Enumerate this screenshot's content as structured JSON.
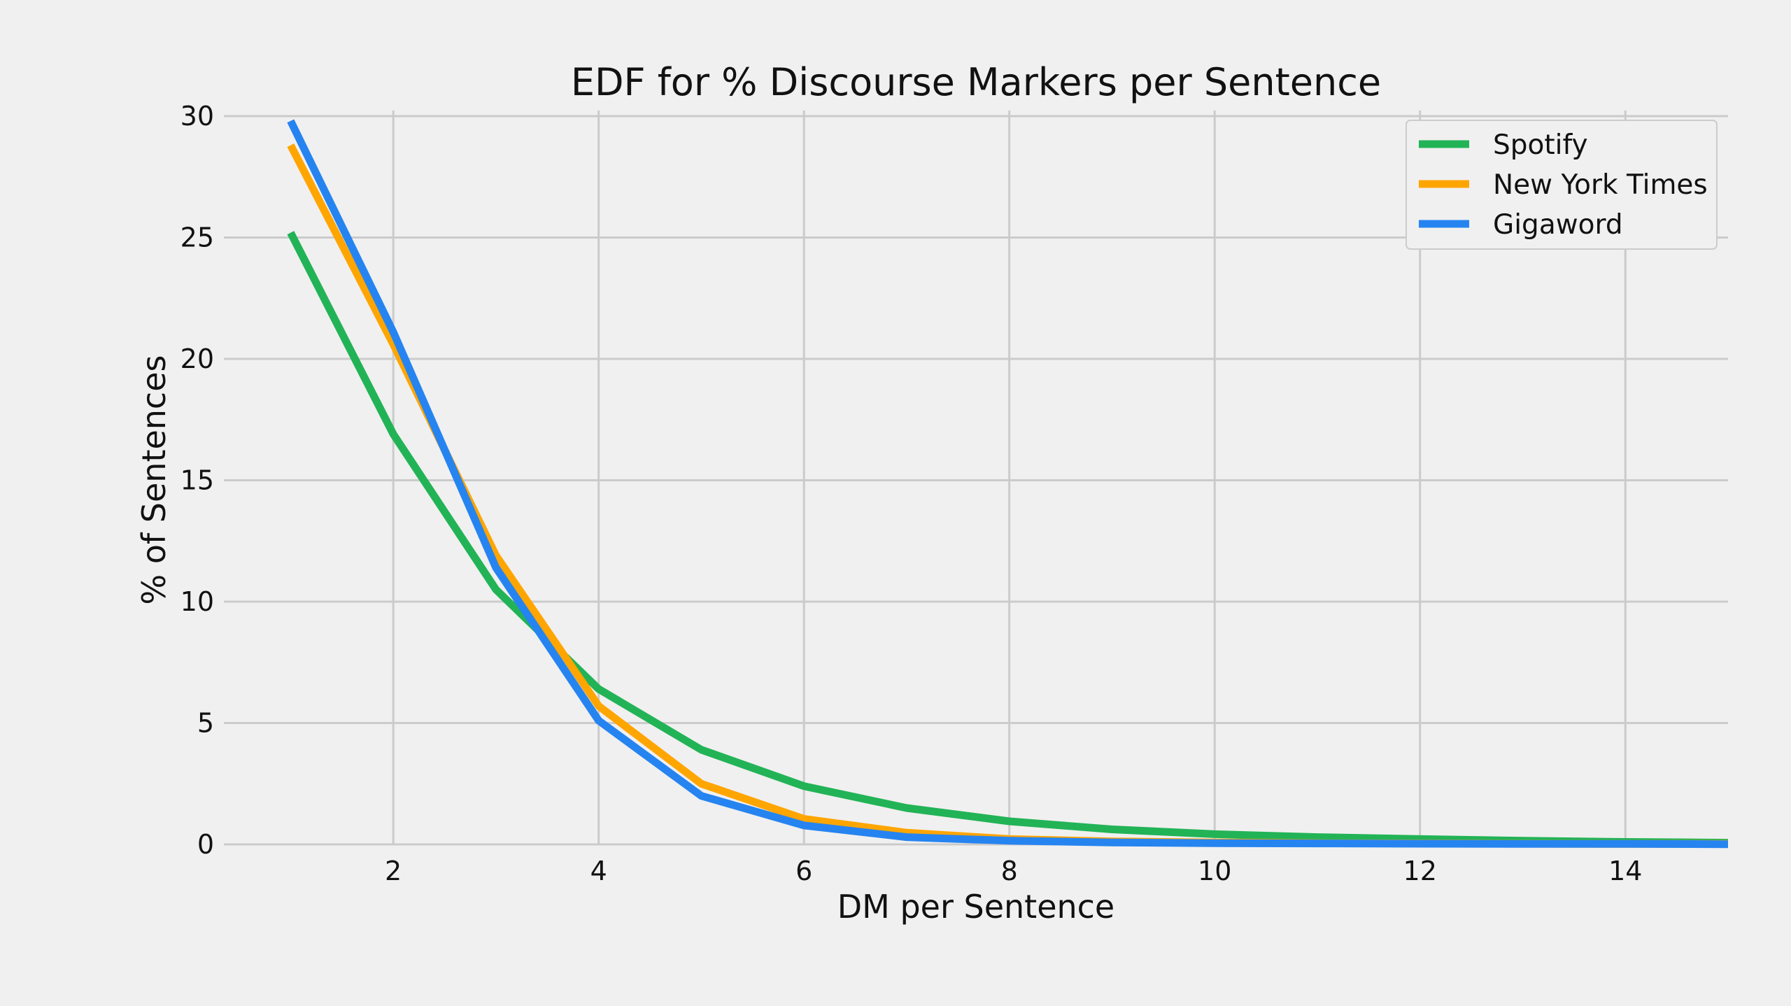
{
  "chart_data": {
    "type": "line",
    "title": "EDF for % Discourse Markers per Sentence",
    "xlabel": "DM per Sentence",
    "ylabel": "% of Sentences",
    "xlim": [
      0.35,
      15
    ],
    "ylim": [
      0,
      30
    ],
    "xticks": [
      2,
      4,
      6,
      8,
      10,
      12,
      14
    ],
    "yticks": [
      0,
      5,
      10,
      15,
      20,
      25,
      30
    ],
    "grid": true,
    "legend_position": "top-right",
    "x": [
      1,
      2,
      3,
      4,
      5,
      6,
      7,
      8,
      9,
      10,
      11,
      12,
      13,
      14,
      15
    ],
    "series": [
      {
        "name": "Spotify",
        "color": "#22b356",
        "values": [
          25.2,
          16.9,
          10.5,
          6.4,
          3.9,
          2.4,
          1.5,
          0.95,
          0.62,
          0.42,
          0.3,
          0.22,
          0.15,
          0.1,
          0.07
        ]
      },
      {
        "name": "New York Times",
        "color": "#ffa500",
        "values": [
          28.8,
          20.6,
          11.9,
          5.7,
          2.5,
          1.05,
          0.48,
          0.22,
          0.12,
          0.08,
          0.05,
          0.04,
          0.03,
          0.02,
          0.02
        ]
      },
      {
        "name": "Gigaword",
        "color": "#2684f0",
        "values": [
          29.8,
          21.1,
          11.4,
          5.1,
          2.0,
          0.78,
          0.3,
          0.15,
          0.08,
          0.05,
          0.04,
          0.03,
          0.02,
          0.02,
          0.01
        ]
      }
    ]
  }
}
